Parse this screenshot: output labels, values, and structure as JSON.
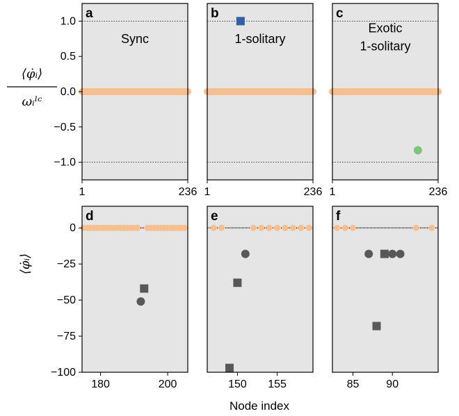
{
  "colors": {
    "panel_bg": "#e5e5e5",
    "sync_nodes": "#f7bf8c",
    "blue_marker": "#3060a8",
    "green_marker": "#77c877",
    "gray_marker": "#585858"
  },
  "figure": {
    "shared_xlabel": "Node index"
  },
  "chart_data": [
    {
      "panel": "a",
      "type": "scatter",
      "annotation": [
        "Sync"
      ],
      "ylabel": "⟨φ̇ᵢ⟩ / ωᵢˡᶜ",
      "ylim": [
        -1.25,
        1.25
      ],
      "yticks": [
        1.0,
        0.5,
        0.0,
        -0.5,
        -1.0
      ],
      "ytick_labels": [
        "1.0",
        "0.5",
        "0.0",
        "−0.5",
        "−1.0"
      ],
      "xlim": [
        1,
        236
      ],
      "xticks": [
        1,
        236
      ],
      "xtick_labels": [
        "1",
        "236"
      ],
      "reference_lines": [
        1,
        -1
      ],
      "series": [
        {
          "role": "synchronized nodes",
          "marker": "circle",
          "color": "#f7bf8c",
          "x_range": [
            1,
            236
          ],
          "y": 0
        }
      ],
      "outliers": []
    },
    {
      "panel": "b",
      "type": "scatter",
      "annotation": [
        "1-solitary"
      ],
      "ylim": [
        -1.25,
        1.25
      ],
      "xlim": [
        1,
        236
      ],
      "xticks": [
        1,
        236
      ],
      "xtick_labels": [
        "1",
        "236"
      ],
      "reference_lines": [
        1,
        -1
      ],
      "series": [
        {
          "role": "synchronized nodes",
          "marker": "circle",
          "color": "#f7bf8c",
          "x_range": [
            1,
            236
          ],
          "y": 0
        }
      ],
      "outliers": [
        {
          "x": 75,
          "y": 1.0,
          "marker": "square",
          "color": "#3060a8"
        }
      ]
    },
    {
      "panel": "c",
      "type": "scatter",
      "annotation": [
        "Exotic",
        "1-solitary"
      ],
      "ylim": [
        -1.25,
        1.25
      ],
      "xlim": [
        1,
        236
      ],
      "xticks": [
        1,
        236
      ],
      "xtick_labels": [
        "1",
        "236"
      ],
      "reference_lines": [
        1,
        -1
      ],
      "series": [
        {
          "role": "synchronized nodes",
          "marker": "circle",
          "color": "#f7bf8c",
          "x_range": [
            1,
            236
          ],
          "y": 0
        }
      ],
      "outliers": [
        {
          "x": 191,
          "y": -0.83,
          "marker": "circle",
          "color": "#77c877"
        }
      ]
    },
    {
      "panel": "d",
      "type": "scatter",
      "ylabel": "⟨φ̇ᵢ⟩",
      "ylim": [
        -100,
        15
      ],
      "yticks": [
        0,
        -25,
        -50,
        -75,
        -100
      ],
      "ytick_labels": [
        "0",
        "−25",
        "−50",
        "−75",
        "−100"
      ],
      "xlim": [
        174.5,
        206
      ],
      "xticks": [
        180,
        200
      ],
      "xtick_labels": [
        "180",
        "200"
      ],
      "zero_line": true,
      "sync_x": [
        175,
        176,
        177,
        178,
        179,
        180,
        181,
        182,
        183,
        184,
        185,
        186,
        187,
        188,
        189,
        190,
        191,
        194,
        195,
        196,
        197,
        198,
        199,
        200,
        201,
        202,
        203,
        204,
        205
      ],
      "outliers": [
        {
          "x": 192,
          "y": -51,
          "marker": "circle",
          "color": "#585858"
        },
        {
          "x": 193,
          "y": -42,
          "marker": "square",
          "color": "#585858"
        }
      ]
    },
    {
      "panel": "e",
      "type": "scatter",
      "ylim": [
        -100,
        15
      ],
      "xlim": [
        146.2,
        159.5
      ],
      "xticks": [
        150,
        155
      ],
      "xtick_labels": [
        "150",
        "155"
      ],
      "zero_line": true,
      "sync_x": [
        147,
        148,
        152,
        153,
        154,
        155,
        156,
        157,
        158,
        159
      ],
      "outliers": [
        {
          "x": 149,
          "y": -97,
          "marker": "square",
          "color": "#585858"
        },
        {
          "x": 150,
          "y": -38,
          "marker": "square",
          "color": "#585858"
        },
        {
          "x": 151,
          "y": -18,
          "marker": "circle",
          "color": "#585858"
        }
      ]
    },
    {
      "panel": "f",
      "type": "scatter",
      "ylim": [
        -100,
        15
      ],
      "xlim": [
        82.4,
        95.8
      ],
      "xticks": [
        85,
        90
      ],
      "xtick_labels": [
        "85",
        "90"
      ],
      "zero_line": true,
      "sync_x": [
        83,
        84,
        85,
        93,
        95
      ],
      "outliers": [
        {
          "x": 87,
          "y": -18,
          "marker": "circle",
          "color": "#585858"
        },
        {
          "x": 88,
          "y": -68,
          "marker": "square",
          "color": "#585858"
        },
        {
          "x": 89,
          "y": -18,
          "marker": "square",
          "color": "#585858"
        },
        {
          "x": 90,
          "y": -18,
          "marker": "circle",
          "color": "#585858"
        },
        {
          "x": 91,
          "y": -18,
          "marker": "circle",
          "color": "#585858"
        }
      ]
    }
  ]
}
